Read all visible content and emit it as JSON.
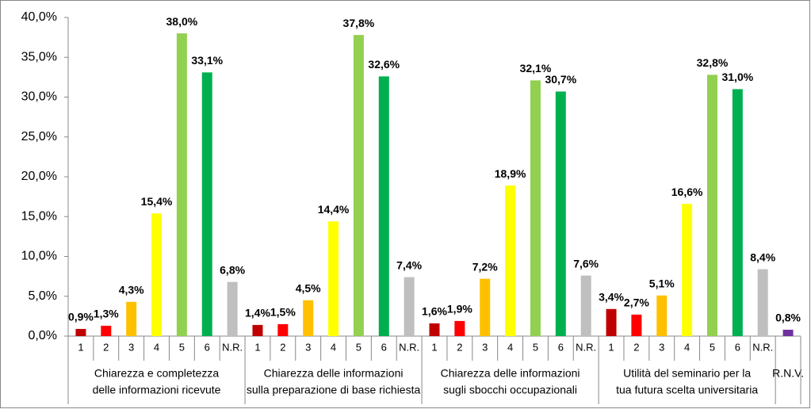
{
  "chart_data": {
    "type": "bar",
    "ylim": [
      0,
      40
    ],
    "yticks": [
      {
        "value": 0,
        "label": "0,0%"
      },
      {
        "value": 5,
        "label": "5,0%"
      },
      {
        "value": 10,
        "label": "10,0%"
      },
      {
        "value": 15,
        "label": "15,0%"
      },
      {
        "value": 20,
        "label": "20,0%"
      },
      {
        "value": 25,
        "label": "25,0%"
      },
      {
        "value": 30,
        "label": "30,0%"
      },
      {
        "value": 35,
        "label": "35,0%"
      },
      {
        "value": 40,
        "label": "40,0%"
      }
    ],
    "groups": [
      {
        "label": [
          "Chiarezza e completezza",
          "delle informazioni ricevute"
        ],
        "categories": [
          "1",
          "2",
          "3",
          "4",
          "5",
          "6",
          "N.R."
        ],
        "values": [
          0.9,
          1.3,
          4.3,
          15.4,
          38.0,
          33.1,
          6.8
        ],
        "value_labels": [
          "0,9%",
          "1,3%",
          "4,3%",
          "15,4%",
          "38,0%",
          "33,1%",
          "6,8%"
        ],
        "colors": [
          "#c00000",
          "#ff0000",
          "#ffc000",
          "#ffff00",
          "#92d050",
          "#00b050",
          "#bfbfbf"
        ]
      },
      {
        "label": [
          "Chiarezza delle informazioni",
          "sulla preparazione di base richiesta"
        ],
        "categories": [
          "1",
          "2",
          "3",
          "4",
          "5",
          "6",
          "N.R."
        ],
        "values": [
          1.4,
          1.5,
          4.5,
          14.4,
          37.8,
          32.6,
          7.4
        ],
        "value_labels": [
          "1,4%",
          "1,5%",
          "4,5%",
          "14,4%",
          "37,8%",
          "32,6%",
          "7,4%"
        ],
        "colors": [
          "#c00000",
          "#ff0000",
          "#ffc000",
          "#ffff00",
          "#92d050",
          "#00b050",
          "#bfbfbf"
        ]
      },
      {
        "label": [
          "Chiarezza delle informazioni",
          "sugli sbocchi occupazionali"
        ],
        "categories": [
          "1",
          "2",
          "3",
          "4",
          "5",
          "6",
          "N.R."
        ],
        "values": [
          1.6,
          1.9,
          7.2,
          18.9,
          32.1,
          30.7,
          7.6
        ],
        "value_labels": [
          "1,6%",
          "1,9%",
          "7,2%",
          "18,9%",
          "32,1%",
          "30,7%",
          "7,6%"
        ],
        "colors": [
          "#c00000",
          "#ff0000",
          "#ffc000",
          "#ffff00",
          "#92d050",
          "#00b050",
          "#bfbfbf"
        ]
      },
      {
        "label": [
          "Utilità del seminario per la",
          "tua futura scelta universitaria"
        ],
        "categories": [
          "1",
          "2",
          "3",
          "4",
          "5",
          "6",
          "N.R."
        ],
        "values": [
          3.4,
          2.7,
          5.1,
          16.6,
          32.8,
          31.0,
          8.4
        ],
        "value_labels": [
          "3,4%",
          "2,7%",
          "5,1%",
          "16,6%",
          "32,8%",
          "31,0%",
          "8,4%"
        ],
        "colors": [
          "#c00000",
          "#ff0000",
          "#ffc000",
          "#ffff00",
          "#92d050",
          "#00b050",
          "#bfbfbf"
        ]
      },
      {
        "label": [
          "R.N.V."
        ],
        "categories": [
          null
        ],
        "values": [
          0.8
        ],
        "value_labels": [
          "0,8%"
        ],
        "colors": [
          "#7030a0"
        ]
      }
    ]
  }
}
